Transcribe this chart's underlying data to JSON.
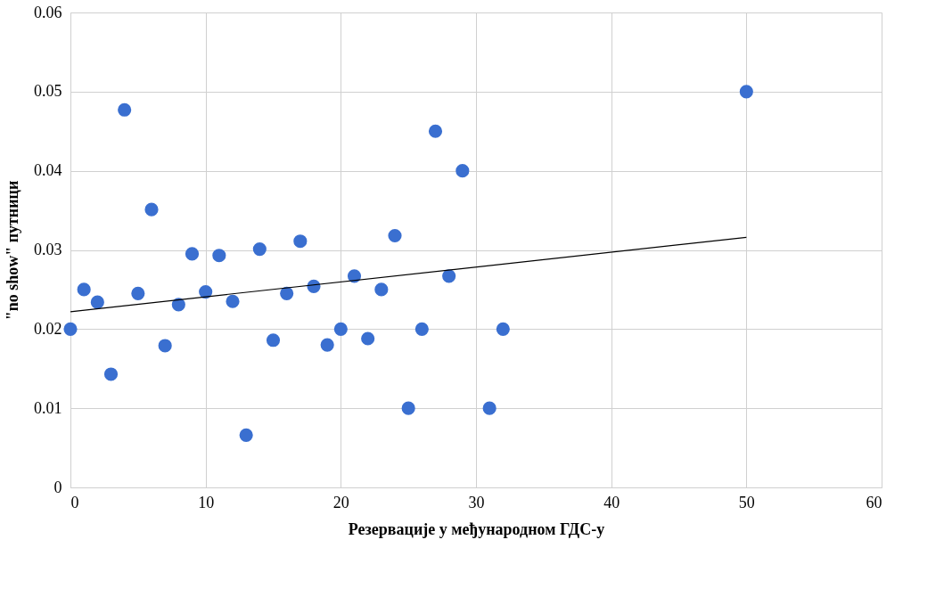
{
  "chart_data": {
    "type": "scatter",
    "xlabel": "Резервације у међународном ГДС-у",
    "ylabel": "\"no show\" путници",
    "series": [
      {
        "type": "scatter",
        "color": "#3a6fd0",
        "marker": "circle",
        "x": [
          0,
          1,
          2,
          3,
          4,
          5,
          6,
          7,
          8,
          9,
          10,
          11,
          12,
          13,
          14,
          15,
          16,
          17,
          18,
          19,
          20,
          21,
          22,
          23,
          24,
          25,
          26,
          27,
          28,
          29,
          31,
          32,
          50
        ],
        "values": [
          0.02,
          0.025,
          0.0234,
          0.0143,
          0.0477,
          0.0245,
          0.0351,
          0.0179,
          0.0231,
          0.0295,
          0.0247,
          0.0293,
          0.0235,
          0.0066,
          0.0301,
          0.0186,
          0.0245,
          0.0311,
          0.0254,
          0.018,
          0.02,
          0.0267,
          0.0188,
          0.025,
          0.0318,
          0.01,
          0.02,
          0.045,
          0.0267,
          0.04,
          0.01,
          0.02,
          0.05
        ]
      },
      {
        "type": "line",
        "color": "#000000",
        "marker": "none",
        "x": [
          0,
          50
        ],
        "values": [
          0.0222,
          0.0316
        ]
      }
    ],
    "xlim": [
      0,
      60
    ],
    "xticks": [
      0,
      10,
      20,
      30,
      40,
      50,
      60
    ],
    "ylim": [
      0,
      0.06
    ],
    "yticks": [
      0,
      0.01,
      0.02,
      0.03,
      0.04,
      0.05,
      0.06
    ],
    "grid": true
  }
}
